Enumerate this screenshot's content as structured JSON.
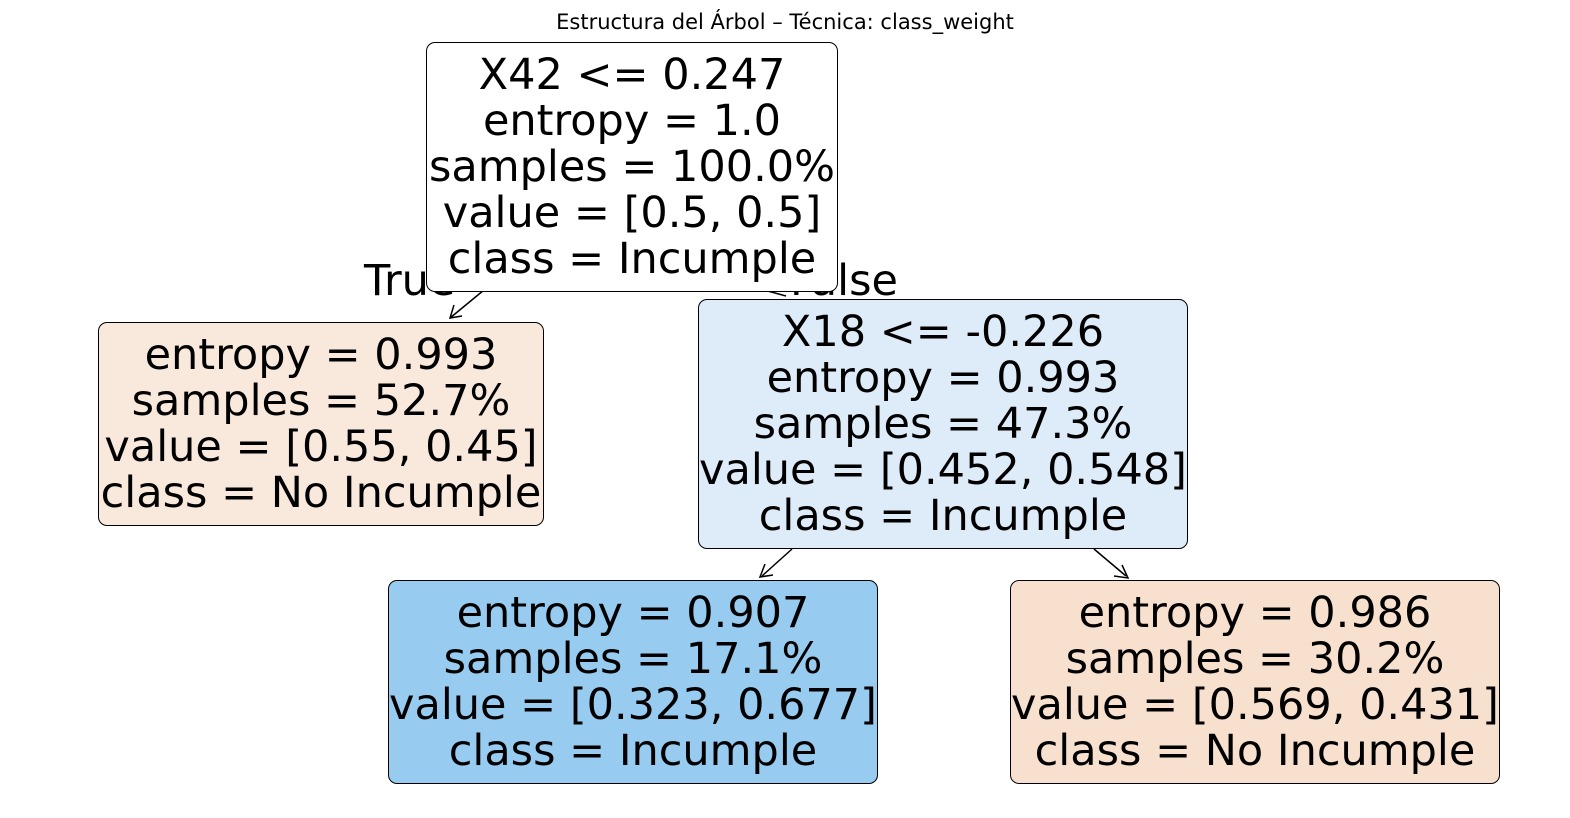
{
  "title": "Estructura del Árbol – Técnica: class_weight",
  "tree": {
    "root": {
      "split": "X42 <= 0.247",
      "entropy": "entropy = 1.0",
      "samples": "samples = 100.0%",
      "value": "value = [0.5, 0.5]",
      "class": "class = Incumple",
      "color": "#ffffff"
    },
    "left_leaf": {
      "entropy": "entropy = 0.993",
      "samples": "samples = 52.7%",
      "value": "value = [0.55, 0.45]",
      "class": "class = No Incumple",
      "color": "#f9e9dd"
    },
    "right_split": {
      "split": "X18 <= -0.226",
      "entropy": "entropy = 0.993",
      "samples": "samples = 47.3%",
      "value": "value = [0.452, 0.548]",
      "class": "class = Incumple",
      "color": "#ddecf8"
    },
    "leaf_incumple": {
      "entropy": "entropy = 0.907",
      "samples": "samples = 17.1%",
      "value": "value = [0.323, 0.677]",
      "class": "class = Incumple",
      "color": "#97cbf0"
    },
    "leaf_no_incumple": {
      "entropy": "entropy = 0.986",
      "samples": "samples = 30.2%",
      "value": "value = [0.569, 0.431]",
      "class": "class = No Incumple",
      "color": "#f8e0ce"
    }
  },
  "edge_labels": {
    "true": "True",
    "false": "False"
  }
}
